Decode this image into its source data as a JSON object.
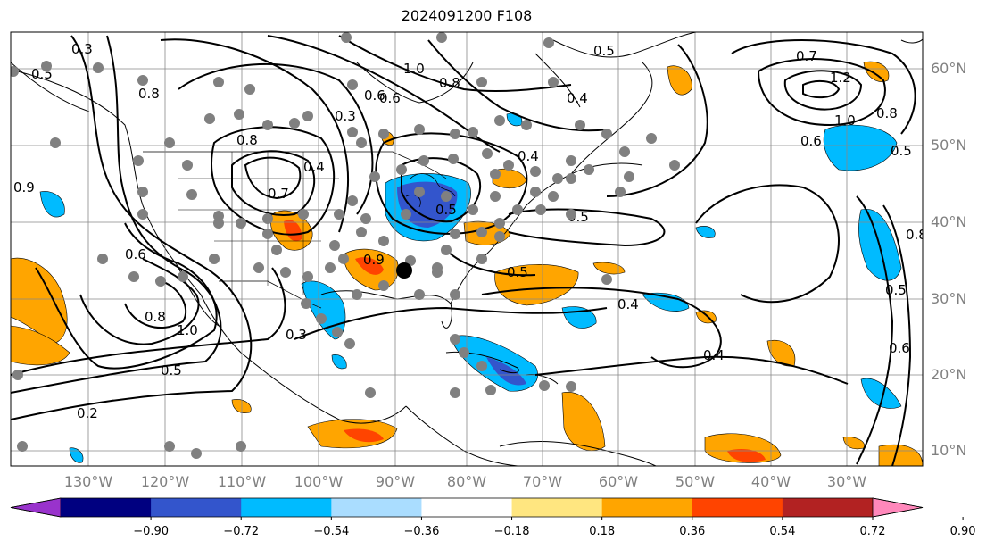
{
  "title": "2024091200 F108",
  "map": {
    "lon_range": [
      -140,
      -25
    ],
    "lat_range": [
      8,
      65
    ],
    "lon_ticks": [
      "130°W",
      "120°W",
      "110°W",
      "100°W",
      "90°W",
      "80°W",
      "70°W",
      "60°W",
      "50°W",
      "40°W",
      "30°W"
    ],
    "lat_ticks": [
      "10°N",
      "20°N",
      "30°N",
      "40°N",
      "50°N",
      "60°N"
    ],
    "grid": true,
    "contour_labels": [
      "0.3",
      "0.5",
      "1.0",
      "0.8",
      "0.4",
      "0.5",
      "0.7",
      "1.2",
      "1.0",
      "0.8",
      "0.6",
      "0.5",
      "0.8",
      "0.3",
      "0.6",
      "0.9",
      "0.4",
      "0.7",
      "0.8",
      "0.6",
      "0.4",
      "0.5",
      "0.9",
      "0.5",
      "0.3",
      "1.0",
      "0.8",
      "0.5",
      "0.4",
      "0.5",
      "0.2",
      "0.6",
      "0.5",
      "0.6",
      "0.4",
      "0.8"
    ],
    "shading_colors": {
      "deep_purple": "#9933cc",
      "navy": "#000080",
      "blue": "#3355cc",
      "cyan": "#00bbff",
      "light_blue": "#aaddff",
      "yellow": "#ffe680",
      "orange": "#ffa500",
      "red_orange": "#ff4400",
      "dark_red": "#b22222",
      "pink": "#ff88bb"
    },
    "marker_color": "#808080",
    "point_marker_color": "#000000"
  },
  "colorbar": {
    "ticks": [
      "−0.90",
      "−0.72",
      "−0.54",
      "−0.36",
      "−0.18",
      "0.18",
      "0.36",
      "0.54",
      "0.72",
      "0.90"
    ],
    "colors": [
      "#9933cc",
      "#000080",
      "#3355cc",
      "#00bbff",
      "#aaddff",
      "#ffffff",
      "#ffe680",
      "#ffa500",
      "#ff4400",
      "#b22222",
      "#ff88bb"
    ]
  }
}
